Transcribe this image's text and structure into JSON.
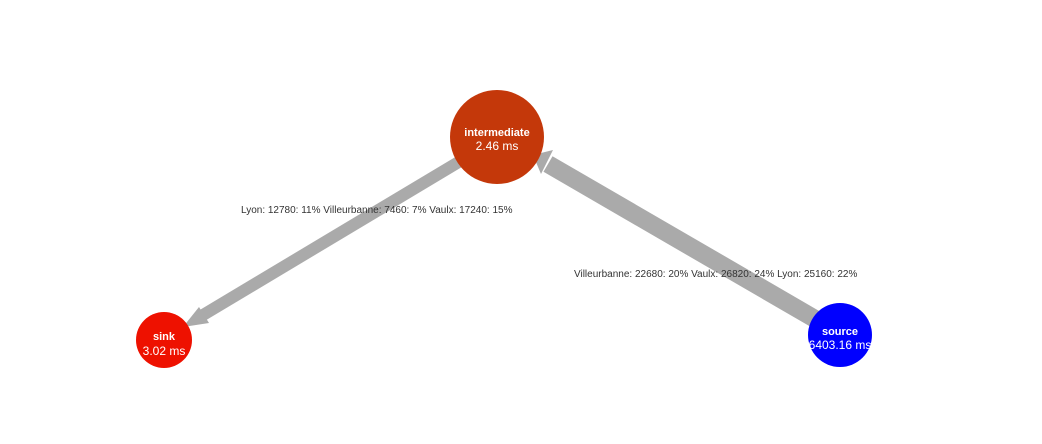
{
  "colors": {
    "edge": "#aaaaaa",
    "label_text": "#333333",
    "node_text": "#ffffff"
  },
  "nodes": {
    "intermediate": {
      "name": "intermediate",
      "time": "2.46 ms",
      "color": "#c4380a"
    },
    "sink": {
      "name": "sink",
      "time": "3.02 ms",
      "color": "#ee1100"
    },
    "source": {
      "name": "source",
      "time": "6403.16 ms",
      "color": "#0000ff"
    }
  },
  "edges": {
    "intermediate_to_sink": {
      "from": "intermediate",
      "to": "sink",
      "label": "Lyon: 12780: 11% Villeurbanne: 7460: 7% Vaulx: 17240: 15%"
    },
    "source_to_intermediate": {
      "from": "source",
      "to": "intermediate",
      "label": "Villeurbanne: 22680: 20% Vaulx: 26820: 24% Lyon: 25160: 22%"
    }
  }
}
